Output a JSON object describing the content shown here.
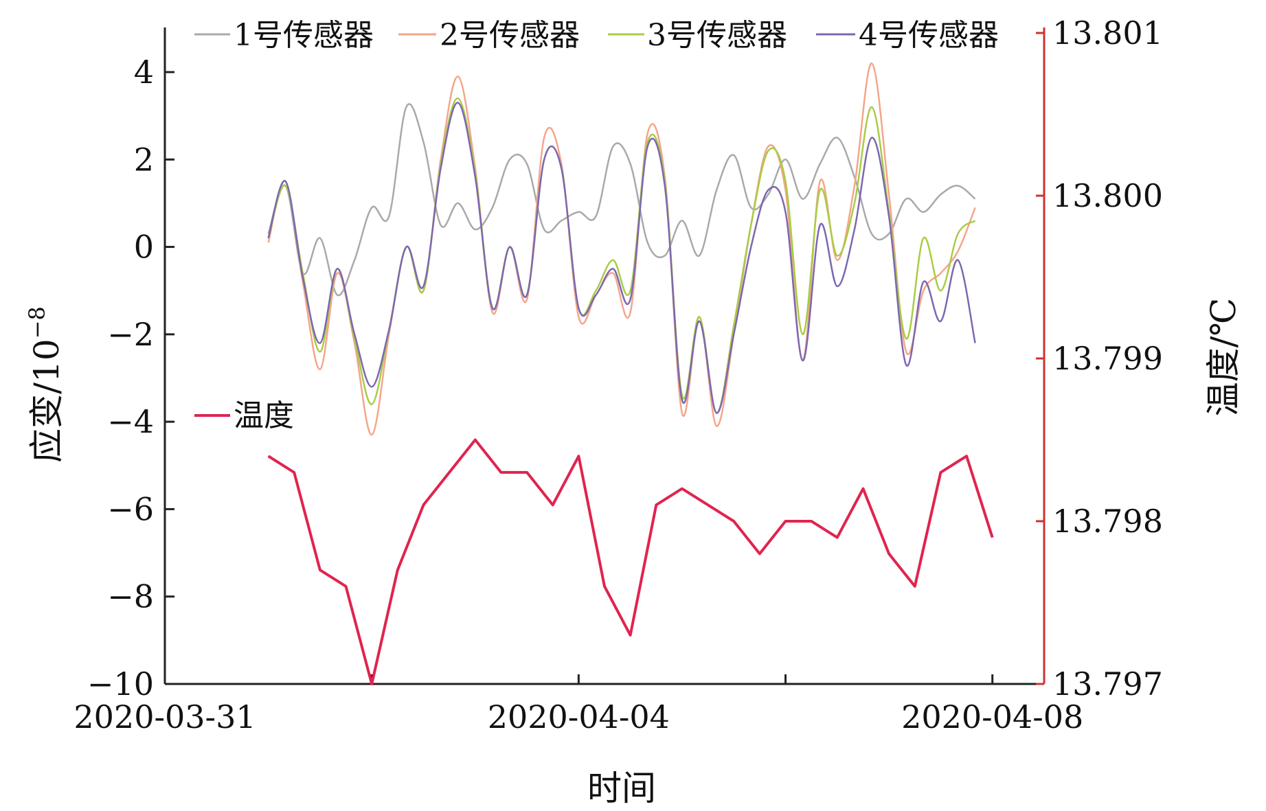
{
  "chart_data": {
    "type": "line",
    "xlabel": "时间",
    "ylabel_left": "应变/10",
    "ylabel_left_exponent": "−8",
    "ylabel_right": "温度/℃",
    "x_ticks": [
      "2020-03-31",
      "2020-04-04",
      "2020-04-08"
    ],
    "x_range": [
      "2020-03-31",
      "2020-04-08 12:00"
    ],
    "ylim_left": [
      -10,
      5
    ],
    "yticks_left": [
      "−10",
      "−8",
      "−6",
      "−4",
      "−2",
      "0",
      "2",
      "4"
    ],
    "ylim_right": [
      13.797,
      13.801
    ],
    "yticks_right": [
      "13.797",
      "13.798",
      "13.799",
      "13.800",
      "13.801"
    ],
    "legend_position": "top",
    "grid": false,
    "colors": {
      "axis": "#222222",
      "right_axis": "#cc3333",
      "s1": "#a9a9a9",
      "s2": "#f3a68a",
      "s3": "#a9cc45",
      "s4": "#7d67b0",
      "temp": "#e0244f"
    },
    "strain_x": [
      "2020-04-01 00:00",
      "2020-04-01 04:00",
      "2020-04-01 08:00",
      "2020-04-01 12:00",
      "2020-04-01 16:00",
      "2020-04-01 20:00",
      "2020-04-02 00:00",
      "2020-04-02 04:00",
      "2020-04-02 08:00",
      "2020-04-02 12:00",
      "2020-04-02 16:00",
      "2020-04-02 20:00",
      "2020-04-03 00:00",
      "2020-04-03 04:00",
      "2020-04-03 08:00",
      "2020-04-03 12:00",
      "2020-04-03 16:00",
      "2020-04-03 20:00",
      "2020-04-04 00:00",
      "2020-04-04 04:00",
      "2020-04-04 08:00",
      "2020-04-04 12:00",
      "2020-04-04 16:00",
      "2020-04-04 20:00",
      "2020-04-05 00:00",
      "2020-04-05 04:00",
      "2020-04-05 08:00",
      "2020-04-05 12:00",
      "2020-04-05 16:00",
      "2020-04-05 20:00",
      "2020-04-06 00:00",
      "2020-04-06 04:00",
      "2020-04-06 08:00",
      "2020-04-06 12:00",
      "2020-04-06 16:00",
      "2020-04-06 20:00",
      "2020-04-07 00:00",
      "2020-04-07 04:00",
      "2020-04-07 08:00",
      "2020-04-07 12:00",
      "2020-04-07 16:00",
      "2020-04-07 20:00"
    ],
    "series": [
      {
        "name": "1号传感器",
        "values": [
          0.3,
          1.4,
          -0.6,
          0.2,
          -1.1,
          -0.3,
          0.9,
          0.7,
          3.2,
          2.4,
          0.5,
          1.0,
          0.4,
          0.9,
          2.0,
          1.9,
          0.4,
          0.6,
          0.8,
          0.7,
          2.3,
          1.9,
          0.1,
          -0.2,
          0.6,
          -0.2,
          1.3,
          2.1,
          0.9,
          1.2,
          2.0,
          1.1,
          1.9,
          2.5,
          1.6,
          0.3,
          0.3,
          1.1,
          0.8,
          1.2,
          1.4,
          1.1
        ]
      },
      {
        "name": "2号传感器",
        "values": [
          0.1,
          1.5,
          -0.8,
          -2.8,
          -0.6,
          -2.2,
          -4.3,
          -2.0,
          0.0,
          -1.0,
          2.0,
          3.9,
          1.8,
          -1.5,
          0.0,
          -1.2,
          2.5,
          1.9,
          -1.6,
          -1.1,
          -0.6,
          -1.5,
          2.6,
          1.6,
          -3.8,
          -1.6,
          -4.1,
          -2.0,
          0.5,
          2.3,
          1.3,
          -2.6,
          1.5,
          -0.3,
          1.4,
          4.2,
          1.2,
          -2.4,
          -1.0,
          -0.6,
          -0.1,
          0.9
        ]
      },
      {
        "name": "3号传感器",
        "values": [
          0.2,
          1.4,
          -0.6,
          -2.4,
          -0.5,
          -2.1,
          -3.6,
          -1.9,
          0.0,
          -1.0,
          1.9,
          3.4,
          1.7,
          -1.4,
          0.0,
          -1.1,
          2.0,
          1.8,
          -1.4,
          -1.0,
          -0.3,
          -1.0,
          2.4,
          1.5,
          -3.4,
          -1.6,
          -3.8,
          -1.8,
          0.5,
          2.2,
          1.5,
          -2.0,
          1.3,
          -0.2,
          1.0,
          3.2,
          0.8,
          -2.1,
          0.2,
          -1.0,
          0.3,
          0.6
        ]
      },
      {
        "name": "4号传感器",
        "values": [
          0.2,
          1.5,
          -0.7,
          -2.2,
          -0.5,
          -2.0,
          -3.2,
          -1.9,
          0.0,
          -0.9,
          1.8,
          3.3,
          1.6,
          -1.4,
          0.0,
          -1.1,
          2.0,
          1.8,
          -1.4,
          -1.1,
          -0.5,
          -1.2,
          2.3,
          1.4,
          -3.5,
          -1.7,
          -3.8,
          -2.0,
          0.0,
          1.3,
          0.8,
          -2.6,
          0.5,
          -0.9,
          0.4,
          2.5,
          0.7,
          -2.7,
          -0.8,
          -1.7,
          -0.3,
          -2.2
        ]
      }
    ],
    "temperature": {
      "name": "温度",
      "x": [
        "2020-04-01 00:00",
        "2020-04-01 06:00",
        "2020-04-01 12:00",
        "2020-04-01 18:00",
        "2020-04-02 00:00",
        "2020-04-02 06:00",
        "2020-04-02 12:00",
        "2020-04-02 18:00",
        "2020-04-03 00:00",
        "2020-04-03 06:00",
        "2020-04-03 12:00",
        "2020-04-03 18:00",
        "2020-04-04 00:00",
        "2020-04-04 06:00",
        "2020-04-04 12:00",
        "2020-04-04 18:00",
        "2020-04-05 00:00",
        "2020-04-05 06:00",
        "2020-04-05 12:00",
        "2020-04-05 18:00",
        "2020-04-06 00:00",
        "2020-04-06 06:00",
        "2020-04-06 12:00",
        "2020-04-06 18:00",
        "2020-04-07 00:00",
        "2020-04-07 06:00",
        "2020-04-07 12:00",
        "2020-04-07 18:00",
        "2020-04-08 00:00"
      ],
      "values": [
        13.7984,
        13.7983,
        13.7977,
        13.7976,
        13.797,
        13.7977,
        13.7981,
        13.7983,
        13.7985,
        13.7983,
        13.7983,
        13.7981,
        13.7984,
        13.7976,
        13.7973,
        13.7981,
        13.7982,
        13.7981,
        13.798,
        13.7978,
        13.798,
        13.798,
        13.7979,
        13.7982,
        13.7978,
        13.7976,
        13.7983,
        13.7984,
        13.7979
      ]
    }
  }
}
